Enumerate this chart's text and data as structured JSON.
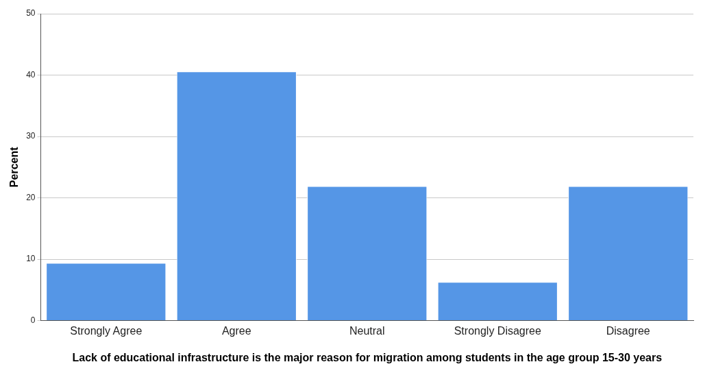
{
  "chart_data": {
    "type": "bar",
    "xlabel": "Lack of educational infrastructure is the major reason for migration among students in the age group 15-30 years",
    "ylabel": "Percent",
    "categories": [
      "Strongly Agree",
      "Agree",
      "Neutral",
      "Strongly Disagree",
      "Disagree"
    ],
    "values": [
      9.4,
      40.6,
      21.9,
      6.3,
      21.9
    ],
    "color": "#5596e6",
    "ylim": [
      0,
      50
    ],
    "yticks": [
      0,
      10,
      20,
      30,
      40,
      50
    ],
    "grid": "y",
    "legend": false
  }
}
